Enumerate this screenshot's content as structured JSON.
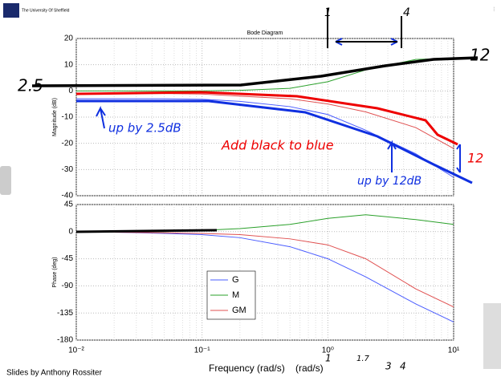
{
  "header": {
    "logo": "The University Of Sheffield"
  },
  "footer": "Slides by Anthony Rossiter",
  "annotations": [
    "2.5",
    "12",
    "up by 2.5dB",
    "Add black to blue",
    "up by 12dB",
    "12",
    "(rad/s)",
    "1",
    "4",
    "1",
    "1.7",
    "3",
    "4"
  ],
  "chart_data": [
    {
      "type": "line",
      "title": "Bode Diagram",
      "y_label": "Magnitude (dB)",
      "xscale": "log",
      "grid": true,
      "x": [
        0.01,
        0.02,
        0.05,
        0.1,
        0.2,
        0.5,
        1,
        2,
        5,
        10
      ],
      "xlim": [
        0.01,
        10
      ],
      "xticks": [
        0.01,
        0.1,
        1,
        10
      ],
      "ylim": [
        -40,
        20
      ],
      "yticks": [
        -40,
        -30,
        -20,
        -10,
        0,
        10,
        20
      ],
      "series": [
        {
          "name": "G",
          "color": "#4a5cff",
          "values": [
            -3,
            -3,
            -3,
            -3.2,
            -4,
            -6,
            -9,
            -15,
            -24,
            -33
          ]
        },
        {
          "name": "M",
          "color": "#2aa02a",
          "values": [
            0,
            0,
            0,
            0,
            0.2,
            1,
            3.5,
            8,
            12,
            12.5
          ]
        },
        {
          "name": "GM",
          "color": "#e05050",
          "values": [
            -1,
            -1,
            -1,
            -1.2,
            -2,
            -3,
            -5,
            -8,
            -14,
            -22
          ]
        }
      ]
    },
    {
      "type": "line",
      "y_label": "Phase (deg)",
      "x_label": "Frequency (rad/s)",
      "xscale": "log",
      "grid": true,
      "legend": "center-left",
      "x": [
        0.01,
        0.02,
        0.05,
        0.1,
        0.2,
        0.5,
        1,
        2,
        5,
        10
      ],
      "xlim": [
        0.01,
        10
      ],
      "xticks": [
        {
          "value": 0.01,
          "label": "10⁻²"
        },
        {
          "value": 0.1,
          "label": "10⁻¹"
        },
        {
          "value": 1,
          "label": "10⁰"
        },
        {
          "value": 10,
          "label": "10¹"
        }
      ],
      "ylim": [
        -180,
        45
      ],
      "yticks": [
        -180,
        -135,
        -90,
        -45,
        0,
        45
      ],
      "series": [
        {
          "name": "G",
          "color": "#4a5cff",
          "values": [
            0,
            -1,
            -3,
            -5,
            -10,
            -25,
            -45,
            -75,
            -120,
            -150
          ]
        },
        {
          "name": "M",
          "color": "#2aa02a",
          "values": [
            0,
            0,
            0,
            2,
            5,
            12,
            22,
            28,
            20,
            12
          ]
        },
        {
          "name": "GM",
          "color": "#e05050",
          "values": [
            0,
            -1,
            -2,
            -3,
            -5,
            -12,
            -22,
            -45,
            -95,
            -125
          ]
        }
      ]
    }
  ]
}
